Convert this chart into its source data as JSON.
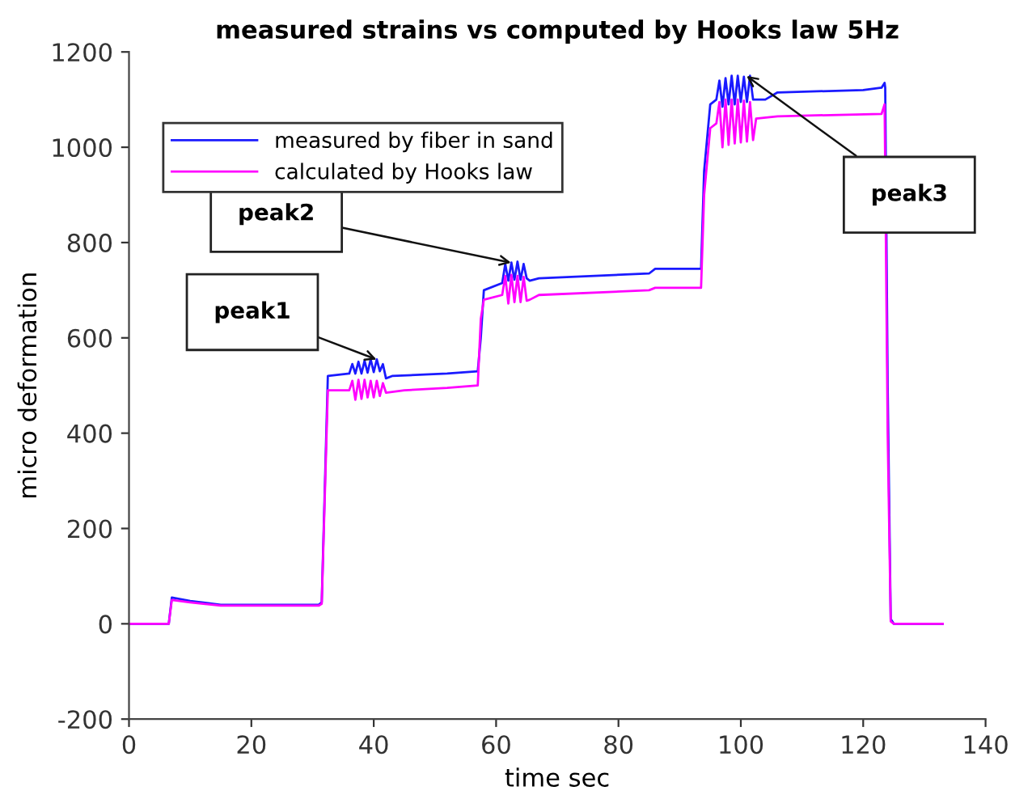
{
  "chart_data": {
    "type": "line",
    "title": "measured strains vs computed by Hooks law 5Hz",
    "xlabel": "time sec",
    "ylabel": "micro deformation",
    "xlim": [
      0,
      140
    ],
    "xticks": [
      0,
      20,
      40,
      60,
      80,
      100,
      120,
      140
    ],
    "ylim": [
      -200,
      1200
    ],
    "yticks": [
      -200,
      0,
      200,
      400,
      600,
      800,
      1000,
      1200
    ],
    "grid": false,
    "legend": "top left",
    "marker": "none",
    "line_style": "solid",
    "series": [
      {
        "name": "measured by fiber in sand",
        "color": "#1a1aff",
        "x": [
          0,
          6.5,
          7,
          10,
          15,
          31,
          31.5,
          32.5,
          36,
          36.5,
          37,
          37.5,
          38,
          38.5,
          39,
          39.5,
          40,
          40.5,
          41,
          41.5,
          42,
          43,
          52,
          57,
          57.5,
          58,
          61,
          61.5,
          62,
          62.5,
          63,
          63.5,
          64,
          64.5,
          65,
          65.5,
          67,
          85,
          86,
          93.5,
          94,
          95,
          96,
          96.5,
          97,
          97.5,
          98,
          98.5,
          99,
          99.5,
          100,
          100.5,
          101,
          101.5,
          102,
          102.5,
          104,
          106,
          120,
          123,
          123.5,
          123.6,
          124,
          124.5,
          125,
          133
        ],
        "values": [
          0,
          0,
          55,
          48,
          40,
          40,
          45,
          520,
          525,
          545,
          525,
          550,
          525,
          552,
          527,
          555,
          528,
          555,
          530,
          545,
          515,
          520,
          525,
          530,
          600,
          700,
          715,
          755,
          720,
          758,
          722,
          760,
          722,
          755,
          725,
          720,
          725,
          735,
          745,
          745,
          950,
          1090,
          1100,
          1140,
          1085,
          1145,
          1090,
          1150,
          1090,
          1150,
          1095,
          1148,
          1095,
          1150,
          1100,
          1100,
          1100,
          1115,
          1120,
          1125,
          1135,
          1125,
          500,
          10,
          0,
          0
        ]
      },
      {
        "name": "calculated by Hooks law",
        "color": "#ff00ff",
        "x": [
          0,
          6.5,
          7,
          10,
          15,
          31,
          31.5,
          32.5,
          36,
          36.5,
          37,
          37.5,
          38,
          38.5,
          39,
          39.5,
          40,
          40.5,
          41,
          41.5,
          42,
          45,
          52,
          57,
          57.5,
          58,
          61,
          61.5,
          62,
          62.5,
          63,
          63.5,
          64,
          64.5,
          65,
          65.5,
          67,
          85,
          86,
          93.5,
          94,
          95,
          96,
          96.5,
          97,
          97.5,
          98,
          98.5,
          99,
          99.5,
          100,
          100.5,
          101,
          101.5,
          102,
          102.5,
          106,
          123,
          123.5,
          124,
          124.5,
          125,
          133
        ],
        "values": [
          0,
          0,
          50,
          45,
          38,
          38,
          42,
          490,
          490,
          510,
          470,
          512,
          472,
          512,
          475,
          510,
          475,
          510,
          478,
          505,
          485,
          490,
          495,
          500,
          640,
          680,
          690,
          730,
          672,
          732,
          675,
          730,
          675,
          728,
          678,
          680,
          690,
          700,
          705,
          705,
          900,
          1040,
          1050,
          1095,
          1000,
          1100,
          1005,
          1100,
          1008,
          1100,
          1010,
          1098,
          1012,
          1095,
          1015,
          1060,
          1065,
          1070,
          1090,
          400,
          5,
          0,
          0
        ]
      }
    ],
    "annotations": [
      "peak1",
      "peak2",
      "peak3"
    ]
  }
}
